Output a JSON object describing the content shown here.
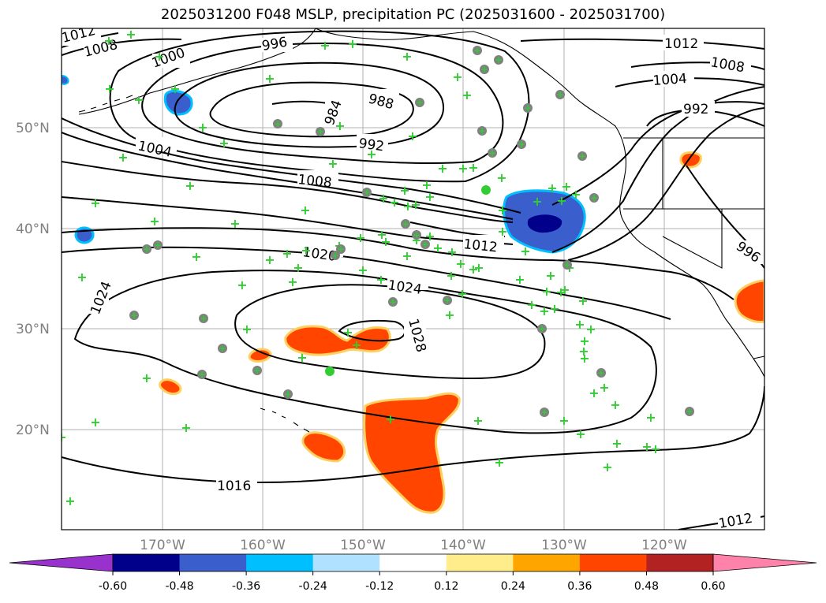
{
  "title": "2025031200 F048 MSLP, precipitation PC (2025031600 - 2025031700)",
  "lat_labels": [
    "50°N",
    "40°N",
    "30°N",
    "20°N"
  ],
  "lon_labels": [
    "170°W",
    "160°W",
    "150°W",
    "140°W",
    "130°W",
    "120°W"
  ],
  "isobar_labels": [
    "1012",
    "1008",
    "1000",
    "996",
    "984",
    "988",
    "992",
    "1004",
    "1008",
    "1012",
    "1020",
    "1024",
    "1028",
    "1024",
    "1016",
    "1012",
    "1008",
    "1004",
    "992",
    "996",
    "1012"
  ],
  "colorbar": {
    "tick_labels": [
      "-0.60",
      "-0.48",
      "-0.36",
      "-0.24",
      "-0.12",
      "0.12",
      "0.24",
      "0.36",
      "0.48",
      "0.60"
    ],
    "under_color": "#9932cc",
    "bin_colors": [
      "#00008b",
      "#3a5fcd",
      "#00bfff",
      "#b0e2ff",
      "#ffffff",
      "#ffec8b",
      "#ffa500",
      "#ff4500",
      "#b22222"
    ],
    "over_color": "#ff82ab"
  },
  "colors": {
    "station_cross": "#32cd32",
    "station_circle": "#808080",
    "isobar": "#000000",
    "grid": "#b0b0b0"
  }
}
